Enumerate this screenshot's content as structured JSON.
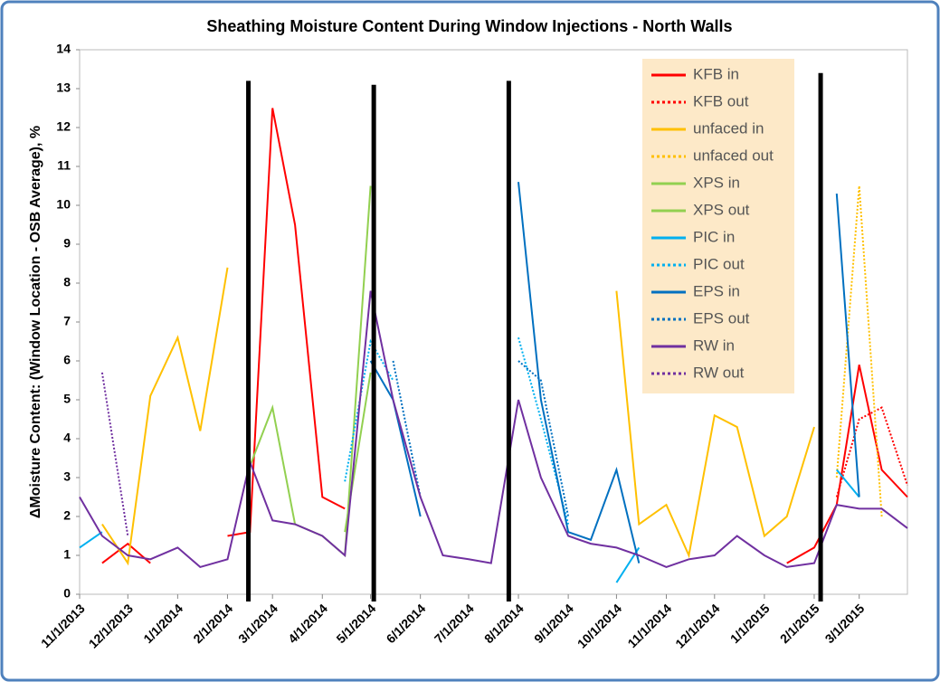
{
  "chart_data": {
    "type": "line",
    "title": "Sheathing Moisture Content During Window Injections - North Walls",
    "y_label": "ΔMoisture Content: (Window Location - OSB Average), %",
    "x": [
      "11/1/2013",
      "11/15/2013",
      "12/1/2013",
      "12/15/2013",
      "1/1/2014",
      "1/15/2014",
      "2/1/2014",
      "2/15/2014",
      "3/1/2014",
      "3/15/2014",
      "4/1/2014",
      "4/15/2014",
      "5/1/2014",
      "5/15/2014",
      "6/1/2014",
      "6/15/2014",
      "7/1/2014",
      "7/15/2014",
      "8/1/2014",
      "8/15/2014",
      "9/1/2014",
      "9/15/2014",
      "10/1/2014",
      "10/15/2014",
      "11/1/2014",
      "11/15/2014",
      "12/1/2014",
      "12/15/2014",
      "1/1/2015",
      "1/15/2015",
      "2/1/2015",
      "2/15/2015",
      "3/1/2015",
      "3/15/2015",
      "3/31/2015"
    ],
    "xlim": [
      "11/1/2013",
      "3/31/2015"
    ],
    "xticks": [
      "11/1/2013",
      "12/1/2013",
      "1/1/2014",
      "2/1/2014",
      "3/1/2014",
      "4/1/2014",
      "5/1/2014",
      "6/1/2014",
      "7/1/2014",
      "8/1/2014",
      "9/1/2014",
      "10/1/2014",
      "11/1/2014",
      "12/1/2014",
      "1/1/2015",
      "2/1/2015",
      "3/1/2015"
    ],
    "ylim": [
      0,
      14
    ],
    "yticks": [
      0,
      1,
      2,
      3,
      4,
      5,
      6,
      7,
      8,
      9,
      10,
      11,
      12,
      13,
      14
    ],
    "legend": "top-right",
    "series": [
      {
        "name": "KFB in",
        "color": "#ff0000",
        "line_style": "solid",
        "values": [
          null,
          0.8,
          1.3,
          0.8,
          null,
          null,
          1.5,
          1.6,
          12.5,
          9.5,
          2.5,
          2.2,
          null,
          null,
          null,
          null,
          null,
          null,
          null,
          null,
          null,
          null,
          null,
          null,
          null,
          null,
          null,
          null,
          null,
          0.8,
          1.2,
          2.3,
          5.9,
          3.2,
          2.5
        ]
      },
      {
        "name": "KFB out",
        "color": "#ff0000",
        "line_style": "dotted",
        "values": [
          null,
          null,
          null,
          null,
          null,
          null,
          null,
          null,
          null,
          null,
          null,
          null,
          null,
          null,
          null,
          null,
          null,
          null,
          null,
          null,
          null,
          null,
          null,
          null,
          null,
          null,
          null,
          null,
          null,
          null,
          null,
          2.5,
          4.5,
          4.8,
          2.8
        ]
      },
      {
        "name": "unfaced in",
        "color": "#ffc000",
        "line_style": "solid",
        "values": [
          null,
          1.8,
          0.8,
          5.1,
          6.6,
          4.2,
          8.4,
          null,
          null,
          null,
          null,
          null,
          null,
          null,
          null,
          null,
          null,
          null,
          null,
          null,
          null,
          null,
          7.8,
          1.8,
          2.3,
          1.0,
          4.6,
          4.3,
          1.5,
          2.0,
          4.3,
          null,
          null,
          null,
          null
        ]
      },
      {
        "name": "unfaced out",
        "color": "#ffc000",
        "line_style": "dotted",
        "values": [
          null,
          null,
          null,
          null,
          null,
          null,
          null,
          null,
          null,
          null,
          null,
          null,
          null,
          null,
          null,
          null,
          null,
          null,
          null,
          null,
          null,
          null,
          null,
          null,
          null,
          null,
          null,
          null,
          null,
          null,
          null,
          3.0,
          10.5,
          2.0,
          null
        ]
      },
      {
        "name": "XPS in",
        "color": "#92d050",
        "line_style": "solid",
        "values": [
          null,
          null,
          null,
          null,
          null,
          null,
          null,
          3.3,
          4.8,
          1.8,
          1.5,
          1.0,
          10.5,
          null,
          null,
          null,
          null,
          null,
          null,
          null,
          null,
          null,
          null,
          null,
          null,
          null,
          null,
          null,
          null,
          null,
          null,
          null,
          null,
          null,
          null
        ]
      },
      {
        "name": "XPS out",
        "color": "#92d050",
        "line_style": "solid",
        "values": [
          null,
          null,
          null,
          null,
          null,
          null,
          null,
          null,
          null,
          null,
          null,
          1.6,
          5.7,
          null,
          null,
          null,
          null,
          null,
          null,
          null,
          null,
          null,
          null,
          null,
          null,
          null,
          null,
          null,
          null,
          null,
          null,
          null,
          null,
          null,
          null
        ]
      },
      {
        "name": "PIC in",
        "color": "#00b0f0",
        "line_style": "solid",
        "values": [
          1.2,
          1.6,
          null,
          null,
          null,
          null,
          null,
          null,
          null,
          null,
          null,
          null,
          null,
          null,
          null,
          null,
          null,
          null,
          null,
          null,
          null,
          null,
          0.3,
          1.2,
          null,
          null,
          null,
          null,
          null,
          null,
          null,
          3.2,
          2.5,
          null,
          null
        ]
      },
      {
        "name": "PIC out",
        "color": "#00b0f0",
        "line_style": "dotted",
        "values": [
          null,
          null,
          null,
          null,
          null,
          null,
          null,
          null,
          null,
          null,
          null,
          2.9,
          6.5,
          5.5,
          null,
          null,
          null,
          null,
          6.6,
          4.5,
          1.8,
          null,
          null,
          null,
          null,
          null,
          null,
          null,
          null,
          null,
          null,
          null,
          null,
          null,
          null
        ]
      },
      {
        "name": "EPS in",
        "color": "#0070c0",
        "line_style": "solid",
        "values": [
          null,
          null,
          null,
          null,
          null,
          null,
          null,
          null,
          null,
          null,
          null,
          null,
          6.0,
          5.0,
          2.0,
          null,
          null,
          null,
          10.6,
          5.0,
          1.6,
          1.4,
          3.2,
          0.8,
          null,
          null,
          null,
          null,
          null,
          null,
          null,
          10.3,
          2.5,
          null,
          null
        ]
      },
      {
        "name": "EPS out",
        "color": "#0070c0",
        "line_style": "dotted",
        "values": [
          null,
          null,
          null,
          null,
          null,
          null,
          null,
          null,
          null,
          null,
          null,
          null,
          null,
          6.0,
          2.5,
          null,
          null,
          null,
          6.0,
          5.5,
          2.0,
          null,
          null,
          null,
          null,
          null,
          null,
          null,
          null,
          null,
          null,
          null,
          null,
          null,
          null
        ]
      },
      {
        "name": "RW in",
        "color": "#7030a0",
        "line_style": "solid",
        "values": [
          2.5,
          1.5,
          1.0,
          0.9,
          1.2,
          0.7,
          0.9,
          3.4,
          1.9,
          1.8,
          1.5,
          1.0,
          7.8,
          5.0,
          2.5,
          1.0,
          0.9,
          0.8,
          5.0,
          3.0,
          1.5,
          1.3,
          1.2,
          1.0,
          0.7,
          0.9,
          1.0,
          1.5,
          1.0,
          0.7,
          0.8,
          2.3,
          2.2,
          2.2,
          1.7
        ]
      },
      {
        "name": "RW out",
        "color": "#7030a0",
        "line_style": "dotted",
        "values": [
          null,
          5.7,
          1.5,
          null,
          null,
          null,
          null,
          null,
          null,
          null,
          null,
          null,
          null,
          null,
          null,
          null,
          null,
          null,
          null,
          null,
          null,
          null,
          null,
          null,
          null,
          null,
          null,
          null,
          null,
          null,
          null,
          null,
          null,
          null,
          null
        ]
      }
    ],
    "reference_lines": [
      {
        "x": "2/14/2014",
        "y": 13.2
      },
      {
        "x": "5/3/2014",
        "y": 13.1
      },
      {
        "x": "7/26/2014",
        "y": 13.2
      },
      {
        "x": "2/5/2015",
        "y": 13.4
      }
    ]
  }
}
